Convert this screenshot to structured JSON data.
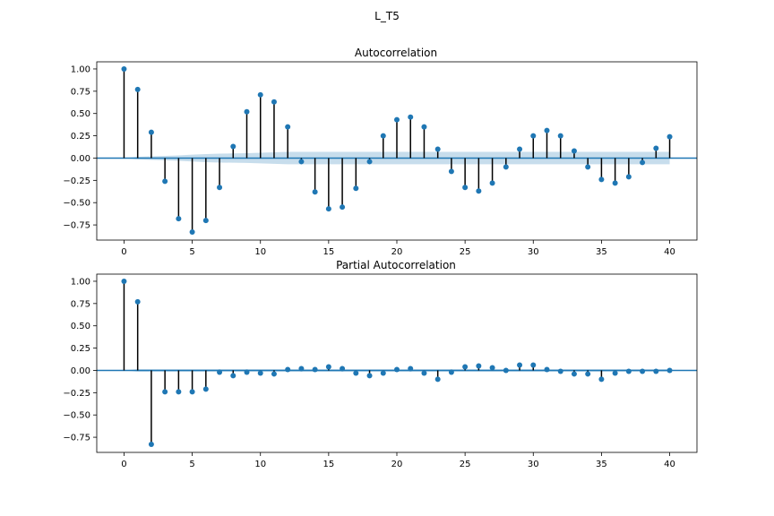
{
  "figure": {
    "suptitle": "L_T5"
  },
  "colors": {
    "marker": "#1f77b4",
    "stem": "#000000",
    "confidence_band": "#1f77b4",
    "zero_line": "#1f77b4"
  },
  "chart_data": [
    {
      "type": "stem",
      "title": "Autocorrelation",
      "xlabel": "",
      "ylabel": "",
      "xlim": [
        -2,
        42
      ],
      "ylim": [
        -0.92,
        1.08
      ],
      "xticks": [
        0,
        5,
        10,
        15,
        20,
        25,
        30,
        35,
        40
      ],
      "yticks": [
        -0.75,
        -0.5,
        -0.25,
        0.0,
        0.25,
        0.5,
        0.75,
        1.0
      ],
      "ytick_labels": [
        "−0.75",
        "−0.50",
        "−0.25",
        "0.00",
        "0.25",
        "0.50",
        "0.75",
        "1.00"
      ],
      "x": [
        0,
        1,
        2,
        3,
        4,
        5,
        6,
        7,
        8,
        9,
        10,
        11,
        12,
        13,
        14,
        15,
        16,
        17,
        18,
        19,
        20,
        21,
        22,
        23,
        24,
        25,
        26,
        27,
        28,
        29,
        30,
        31,
        32,
        33,
        34,
        35,
        36,
        37,
        38,
        39,
        40
      ],
      "values": [
        1.0,
        0.77,
        0.29,
        -0.26,
        -0.68,
        -0.83,
        -0.7,
        -0.33,
        0.13,
        0.52,
        0.71,
        0.63,
        0.35,
        -0.04,
        -0.38,
        -0.57,
        -0.55,
        -0.34,
        -0.04,
        0.25,
        0.43,
        0.46,
        0.35,
        0.1,
        -0.15,
        -0.33,
        -0.37,
        -0.28,
        -0.1,
        0.1,
        0.25,
        0.31,
        0.25,
        0.08,
        -0.1,
        -0.24,
        -0.28,
        -0.21,
        -0.05,
        0.11,
        0.24
      ],
      "confidence": [
        0.0,
        0.015,
        0.02,
        0.025,
        0.03,
        0.038,
        0.045,
        0.05,
        0.052,
        0.055,
        0.06,
        0.065,
        0.07,
        0.07,
        0.07,
        0.07,
        0.07,
        0.07,
        0.07,
        0.07,
        0.07,
        0.07,
        0.07,
        0.07,
        0.07,
        0.07,
        0.07,
        0.07,
        0.07,
        0.07,
        0.07,
        0.07,
        0.07,
        0.07,
        0.07,
        0.07,
        0.07,
        0.07,
        0.07,
        0.07,
        0.07
      ]
    },
    {
      "type": "stem",
      "title": "Partial Autocorrelation",
      "xlabel": "",
      "ylabel": "",
      "xlim": [
        -2,
        42
      ],
      "ylim": [
        -0.92,
        1.08
      ],
      "xticks": [
        0,
        5,
        10,
        15,
        20,
        25,
        30,
        35,
        40
      ],
      "yticks": [
        -0.75,
        -0.5,
        -0.25,
        0.0,
        0.25,
        0.5,
        0.75,
        1.0
      ],
      "ytick_labels": [
        "−0.75",
        "−0.50",
        "−0.25",
        "0.00",
        "0.25",
        "0.50",
        "0.75",
        "1.00"
      ],
      "x": [
        0,
        1,
        2,
        3,
        4,
        5,
        6,
        7,
        8,
        9,
        10,
        11,
        12,
        13,
        14,
        15,
        16,
        17,
        18,
        19,
        20,
        21,
        22,
        23,
        24,
        25,
        26,
        27,
        28,
        29,
        30,
        31,
        32,
        33,
        34,
        35,
        36,
        37,
        38,
        39,
        40
      ],
      "values": [
        1.0,
        0.77,
        -0.83,
        -0.24,
        -0.24,
        -0.24,
        -0.21,
        -0.02,
        -0.06,
        -0.02,
        -0.03,
        -0.04,
        0.01,
        0.02,
        0.01,
        0.04,
        0.02,
        -0.03,
        -0.06,
        -0.03,
        0.01,
        0.02,
        -0.03,
        -0.1,
        -0.02,
        0.04,
        0.05,
        0.03,
        0.0,
        0.06,
        0.06,
        0.01,
        -0.01,
        -0.04,
        -0.04,
        -0.1,
        -0.03,
        -0.01,
        -0.01,
        -0.01,
        0.0
      ],
      "confidence": [
        0.0,
        0.015,
        0.015,
        0.015,
        0.015,
        0.015,
        0.015,
        0.015,
        0.015,
        0.015,
        0.015,
        0.015,
        0.015,
        0.015,
        0.015,
        0.015,
        0.015,
        0.015,
        0.015,
        0.015,
        0.015,
        0.015,
        0.015,
        0.015,
        0.015,
        0.015,
        0.015,
        0.015,
        0.015,
        0.015,
        0.015,
        0.015,
        0.015,
        0.015,
        0.015,
        0.015,
        0.015,
        0.015,
        0.015,
        0.015,
        0.015
      ]
    }
  ]
}
